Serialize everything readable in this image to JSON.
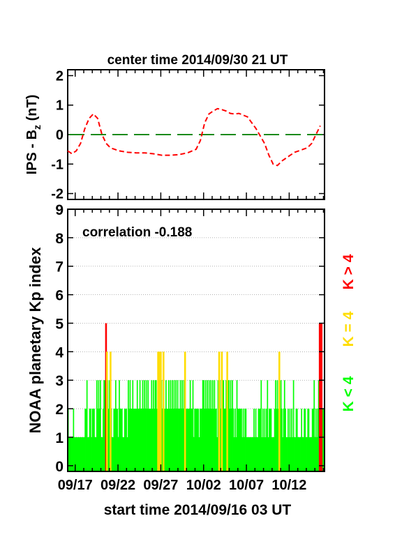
{
  "chart_data": [
    {
      "type": "line",
      "title": "center time 2014/09/30 21 UT",
      "ylabel_main": "IPS - B",
      "ylabel_sub": "z",
      "ylabel_unit": " (nT)",
      "ylim": [
        -2.2,
        2.2
      ],
      "yticks": [
        "2",
        "1",
        "0",
        "-1",
        "-2"
      ],
      "ytick_values": [
        2,
        1,
        0,
        -1,
        -2
      ],
      "xlim": [
        0,
        30
      ],
      "reference_line": {
        "y": 0,
        "color": "#1a8a1a",
        "style": "dashed"
      },
      "series": [
        {
          "color": "#ff0000",
          "style": "dashed",
          "x": [
            0.0,
            0.5,
            1.0,
            1.5,
            2.0,
            2.5,
            3.0,
            3.5,
            4.0,
            4.5,
            5.0,
            6.0,
            7.0,
            8.0,
            9.0,
            10.0,
            11.0,
            12.0,
            13.0,
            14.0,
            15.0,
            15.5,
            16.0,
            16.5,
            17.0,
            17.5,
            18.0,
            18.5,
            19.0,
            19.5,
            20.0,
            21.0,
            22.0,
            23.0,
            23.5,
            24.0,
            24.5,
            25.0,
            25.5,
            26.0,
            26.5,
            27.0,
            27.5,
            28.0,
            28.5,
            29.0,
            29.5
          ],
          "y": [
            -0.55,
            -0.65,
            -0.55,
            -0.3,
            0.2,
            0.55,
            0.7,
            0.55,
            0.0,
            -0.3,
            -0.45,
            -0.55,
            -0.6,
            -0.62,
            -0.62,
            -0.65,
            -0.7,
            -0.7,
            -0.68,
            -0.62,
            -0.5,
            -0.2,
            0.4,
            0.7,
            0.8,
            0.88,
            0.85,
            0.8,
            0.72,
            0.7,
            0.72,
            0.6,
            0.2,
            -0.3,
            -0.7,
            -1.0,
            -1.05,
            -0.9,
            -0.8,
            -0.7,
            -0.6,
            -0.55,
            -0.5,
            -0.45,
            -0.3,
            0.0,
            0.3
          ]
        }
      ]
    },
    {
      "type": "bar",
      "ylabel": "NOAA planetary Kp index",
      "annotation": "correlation -0.188",
      "ylim": [
        -0.2,
        9
      ],
      "yticks": [
        "9",
        "8",
        "7",
        "6",
        "5",
        "4",
        "3",
        "2",
        "1",
        "0"
      ],
      "ytick_values": [
        9,
        8,
        7,
        6,
        5,
        4,
        3,
        2,
        1,
        0
      ],
      "xlim": [
        0,
        30
      ],
      "xticks": [
        "09/17",
        "09/22",
        "09/27",
        "10/02",
        "10/07",
        "10/12"
      ],
      "xtick_values": [
        0.875,
        5.875,
        10.875,
        15.875,
        20.875,
        25.875
      ],
      "xlabel": "start time 2014/09/16 03 UT",
      "legend": [
        {
          "label": "K < 4",
          "color": "#00ff00"
        },
        {
          "label": "K = 4",
          "color": "#ffdd00"
        },
        {
          "label": "K > 4",
          "color": "#ff0000"
        }
      ],
      "values": [
        2,
        1,
        1,
        1,
        1,
        1,
        2,
        1,
        1,
        1,
        1,
        1,
        1,
        1,
        1,
        1,
        1,
        1,
        1,
        2,
        2,
        3,
        1,
        1,
        2,
        2,
        1,
        2,
        2,
        2,
        1,
        1,
        3,
        2,
        3,
        2,
        3,
        1,
        1,
        2,
        3,
        3,
        5,
        4,
        3,
        2,
        3,
        4,
        2,
        1,
        1,
        2,
        2,
        3,
        2,
        2,
        1,
        3,
        2,
        2,
        2,
        1,
        1,
        2,
        2,
        2,
        1,
        3,
        2,
        3,
        2,
        2,
        3,
        2,
        2,
        2,
        2,
        3,
        2,
        2,
        3,
        2,
        2,
        3,
        2,
        3,
        2,
        3,
        2,
        3,
        2,
        2,
        2,
        3,
        2,
        3,
        2,
        3,
        3,
        2,
        4,
        4,
        3,
        4,
        3,
        2,
        4,
        2,
        2,
        3,
        2,
        2,
        3,
        2,
        3,
        2,
        3,
        2,
        3,
        2,
        3,
        2,
        3,
        2,
        2,
        3,
        2,
        3,
        2,
        3,
        4,
        2,
        2,
        2,
        2,
        2,
        3,
        2,
        2,
        3,
        1,
        2,
        2,
        2,
        2,
        2,
        1,
        2,
        2,
        2,
        3,
        3,
        2,
        3,
        2,
        3,
        2,
        3,
        2,
        3,
        2,
        3,
        2,
        3,
        2,
        2,
        1,
        3,
        4,
        3,
        2,
        4,
        3,
        3,
        2,
        2,
        3,
        4,
        3,
        3,
        2,
        3,
        2,
        3,
        2,
        1,
        2,
        1,
        3,
        2,
        2,
        2,
        2,
        2,
        1,
        2,
        1,
        2,
        2,
        1,
        1,
        1,
        1,
        1,
        1,
        1,
        1,
        2,
        1,
        2,
        1,
        1,
        2,
        2,
        2,
        3,
        1,
        2,
        1,
        2,
        1,
        2,
        3,
        1,
        2,
        2,
        2,
        1,
        1,
        1,
        2,
        3,
        2,
        3,
        2,
        4,
        2,
        3,
        2,
        1,
        2,
        3,
        2,
        1,
        1,
        2,
        1,
        2,
        1,
        2,
        1,
        3,
        1,
        1,
        2,
        2,
        1,
        1,
        1,
        1,
        2,
        1,
        1,
        2,
        2,
        1,
        1,
        2,
        2,
        1,
        1,
        1,
        2,
        2,
        3,
        1,
        2,
        1,
        2,
        3,
        5,
        5,
        5,
        2,
        2,
        2
      ]
    }
  ]
}
